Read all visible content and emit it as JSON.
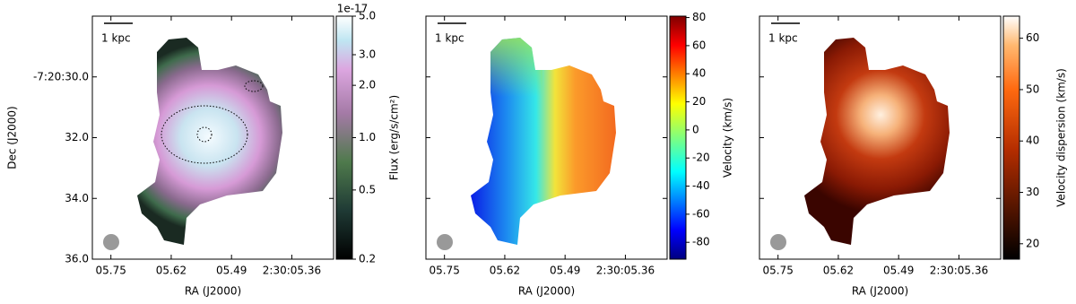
{
  "chart_data": [
    {
      "type": "image",
      "xlabel": "RA (J2000)",
      "ylabel": "Dec (J2000)",
      "xlim": [
        5.79,
        5.27
      ],
      "xticks": [
        {
          "value": 5.75,
          "label": "05.75"
        },
        {
          "value": 5.62,
          "label": "05.62"
        },
        {
          "value": 5.49,
          "label": "05.49"
        },
        {
          "value": 5.36,
          "label": "2:30:05.36"
        }
      ],
      "ylim": [
        36.0,
        28.0
      ],
      "yticks": [
        {
          "value": 30.0,
          "label": "-7:20:30.0"
        },
        {
          "value": 32.0,
          "label": "32.0"
        },
        {
          "value": 34.0,
          "label": "34.0"
        },
        {
          "value": 36.0,
          "label": "36.0"
        }
      ],
      "scalebar": "1 kpc",
      "colorbar": {
        "label": "Flux (erg/s/cm²)",
        "scale": "log",
        "offset": "1e-17",
        "lim": [
          0.2,
          5.0
        ],
        "ticks": [
          {
            "value": 0.2,
            "label": "0.2"
          },
          {
            "value": 0.5,
            "label": "0.5"
          },
          {
            "value": 1.0,
            "label": "1.0"
          },
          {
            "value": 2.0,
            "label": "2.0"
          },
          {
            "value": 3.0,
            "label": "3.0"
          },
          {
            "value": 5.0,
            "label": "5.0"
          }
        ]
      }
    },
    {
      "type": "image",
      "xlabel": "RA (J2000)",
      "xlim": [
        5.79,
        5.27
      ],
      "xticks": [
        {
          "value": 5.75,
          "label": "05.75"
        },
        {
          "value": 5.62,
          "label": "05.62"
        },
        {
          "value": 5.49,
          "label": "05.49"
        },
        {
          "value": 5.36,
          "label": "2:30:05.36"
        }
      ],
      "ylim": [
        36.0,
        28.0
      ],
      "yticks": [
        30,
        32,
        34,
        36
      ],
      "scalebar": "1 kpc",
      "colorbar": {
        "label": "Velocity (km/s)",
        "scale": "linear",
        "lim": [
          -92,
          81
        ],
        "ticks": [
          -80,
          -60,
          -40,
          -20,
          0,
          20,
          40,
          60,
          80
        ]
      }
    },
    {
      "type": "image",
      "xlabel": "RA (J2000)",
      "xlim": [
        5.79,
        5.27
      ],
      "xticks": [
        {
          "value": 5.75,
          "label": "05.75"
        },
        {
          "value": 5.62,
          "label": "05.62"
        },
        {
          "value": 5.49,
          "label": "05.49"
        },
        {
          "value": 5.36,
          "label": "2:30:05.36"
        }
      ],
      "ylim": [
        36.0,
        28.0
      ],
      "yticks": [
        30,
        32,
        34,
        36
      ],
      "scalebar": "1 kpc",
      "colorbar": {
        "label": "Velocity dispersion (km/s)",
        "scale": "linear",
        "lim": [
          17,
          64.3
        ],
        "ticks": [
          20,
          30,
          40,
          50,
          60
        ]
      }
    }
  ]
}
